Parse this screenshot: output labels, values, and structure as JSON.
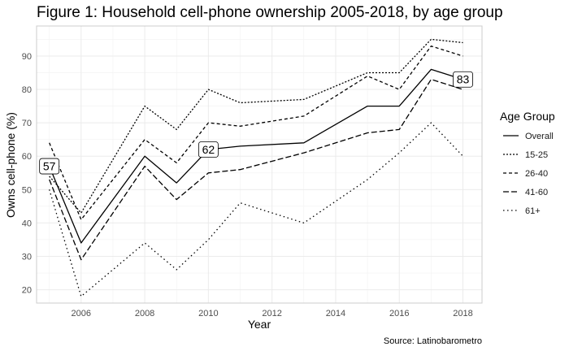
{
  "chart_data": {
    "type": "line",
    "title": "Figure 1: Household cell-phone ownership 2005-2018, by age group",
    "xlabel": "Year",
    "ylabel": "Owns cell-phone (%)",
    "caption": "Source: Latinobarometro",
    "xlim": [
      2004.6,
      2018.6
    ],
    "ylim": [
      16,
      99
    ],
    "x_ticks": [
      2006,
      2008,
      2010,
      2012,
      2014,
      2016,
      2018
    ],
    "y_ticks": [
      20,
      30,
      40,
      50,
      60,
      70,
      80,
      90
    ],
    "grid": true,
    "legend": {
      "title": "Age Group",
      "position": "right"
    },
    "series": [
      {
        "name": "Overall",
        "dash": "solid",
        "x": [
          2005,
          2006,
          2008,
          2009,
          2010,
          2011,
          2013,
          2015,
          2016,
          2017,
          2018
        ],
        "y": [
          57,
          34,
          60,
          52,
          62,
          63,
          64,
          75,
          75,
          86,
          83
        ]
      },
      {
        "name": "15-25",
        "dash": "dotted-dense",
        "x": [
          2005,
          2006,
          2008,
          2009,
          2010,
          2011,
          2013,
          2015,
          2016,
          2017,
          2018
        ],
        "y": [
          54,
          43,
          75,
          68,
          80,
          76,
          77,
          85,
          85,
          95,
          94
        ]
      },
      {
        "name": "26-40",
        "dash": "dashed-short",
        "x": [
          2005,
          2006,
          2008,
          2009,
          2010,
          2011,
          2013,
          2015,
          2016,
          2017,
          2018
        ],
        "y": [
          64,
          41,
          65,
          58,
          70,
          69,
          72,
          84,
          80,
          93,
          90
        ]
      },
      {
        "name": "41-60",
        "dash": "dashed-long",
        "x": [
          2005,
          2006,
          2008,
          2009,
          2010,
          2011,
          2013,
          2015,
          2016,
          2017,
          2018
        ],
        "y": [
          53,
          29,
          57,
          47,
          55,
          56,
          61,
          67,
          68,
          83,
          80
        ]
      },
      {
        "name": "61+",
        "dash": "dotted-sparse",
        "x": [
          2005,
          2006,
          2008,
          2009,
          2010,
          2011,
          2013,
          2015,
          2016,
          2017,
          2018
        ],
        "y": [
          50,
          18,
          34,
          26,
          35,
          46,
          40,
          53,
          61,
          70,
          60
        ]
      }
    ],
    "annotations": [
      {
        "x": 2005,
        "y": 57,
        "label": "57"
      },
      {
        "x": 2010,
        "y": 62,
        "label": "62"
      },
      {
        "x": 2018,
        "y": 83,
        "label": "83"
      }
    ]
  }
}
